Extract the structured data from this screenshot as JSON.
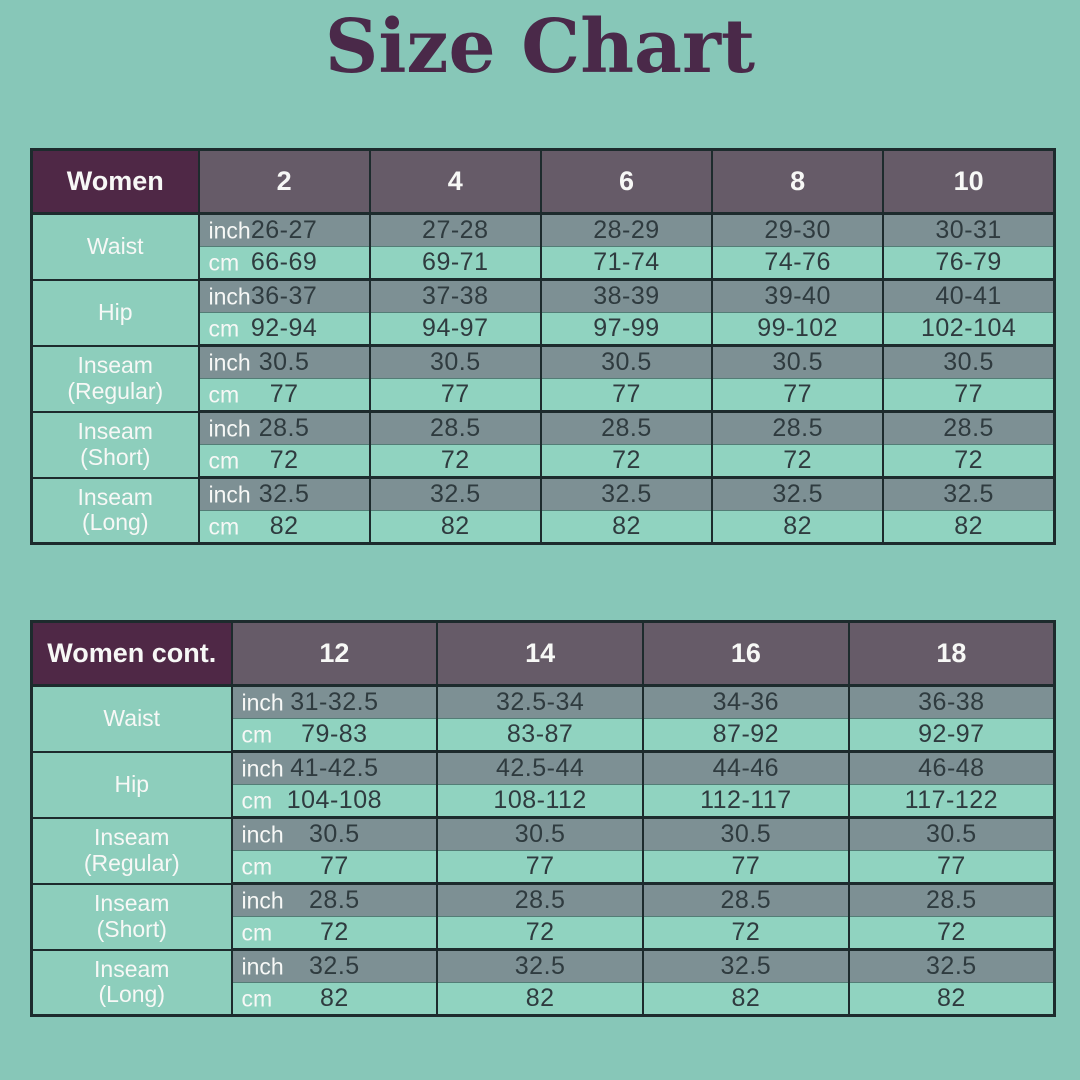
{
  "title": "Size Chart",
  "colors": {
    "background": "#87C7B8",
    "title_text": "#4A2949",
    "corner_header_bg": "#4F2846",
    "size_header_bg": "#665B68",
    "inch_row_bg": "#7D9094",
    "cm_row_bg": "#90D3C0",
    "label_cell_bg": "#8DCEBC",
    "border": "#1D2B2D",
    "value_text": "#2F3B3F",
    "light_text": "#F7F8F6"
  },
  "unit_labels": {
    "inch": "inch",
    "cm": "cm"
  },
  "chart_data": {
    "type": "table",
    "title": "Size Chart",
    "tables": [
      {
        "name": "women",
        "corner_label": "Women",
        "sizes": [
          "2",
          "4",
          "6",
          "8",
          "10"
        ],
        "rows": [
          {
            "label": "Waist",
            "sublabel": "",
            "inch": [
              "26-27",
              "27-28",
              "28-29",
              "29-30",
              "30-31"
            ],
            "cm": [
              "66-69",
              "69-71",
              "71-74",
              "74-76",
              "76-79"
            ]
          },
          {
            "label": "Hip",
            "sublabel": "",
            "inch": [
              "36-37",
              "37-38",
              "38-39",
              "39-40",
              "40-41"
            ],
            "cm": [
              "92-94",
              "94-97",
              "97-99",
              "99-102",
              "102-104"
            ]
          },
          {
            "label": "Inseam",
            "sublabel": "(Regular)",
            "inch": [
              "30.5",
              "30.5",
              "30.5",
              "30.5",
              "30.5"
            ],
            "cm": [
              "77",
              "77",
              "77",
              "77",
              "77"
            ]
          },
          {
            "label": "Inseam",
            "sublabel": "(Short)",
            "inch": [
              "28.5",
              "28.5",
              "28.5",
              "28.5",
              "28.5"
            ],
            "cm": [
              "72",
              "72",
              "72",
              "72",
              "72"
            ]
          },
          {
            "label": "Inseam",
            "sublabel": "(Long)",
            "inch": [
              "32.5",
              "32.5",
              "32.5",
              "32.5",
              "32.5"
            ],
            "cm": [
              "82",
              "82",
              "82",
              "82",
              "82"
            ]
          }
        ]
      },
      {
        "name": "women-cont",
        "corner_label": "Women cont.",
        "sizes": [
          "12",
          "14",
          "16",
          "18"
        ],
        "rows": [
          {
            "label": "Waist",
            "sublabel": "",
            "inch": [
              "31-32.5",
              "32.5-34",
              "34-36",
              "36-38"
            ],
            "cm": [
              "79-83",
              "83-87",
              "87-92",
              "92-97"
            ]
          },
          {
            "label": "Hip",
            "sublabel": "",
            "inch": [
              "41-42.5",
              "42.5-44",
              "44-46",
              "46-48"
            ],
            "cm": [
              "104-108",
              "108-112",
              "112-117",
              "117-122"
            ]
          },
          {
            "label": "Inseam",
            "sublabel": "(Regular)",
            "inch": [
              "30.5",
              "30.5",
              "30.5",
              "30.5"
            ],
            "cm": [
              "77",
              "77",
              "77",
              "77"
            ]
          },
          {
            "label": "Inseam",
            "sublabel": "(Short)",
            "inch": [
              "28.5",
              "28.5",
              "28.5",
              "28.5"
            ],
            "cm": [
              "72",
              "72",
              "72",
              "72"
            ]
          },
          {
            "label": "Inseam",
            "sublabel": "(Long)",
            "inch": [
              "32.5",
              "32.5",
              "32.5",
              "32.5"
            ],
            "cm": [
              "82",
              "82",
              "82",
              "82"
            ]
          }
        ]
      }
    ]
  }
}
